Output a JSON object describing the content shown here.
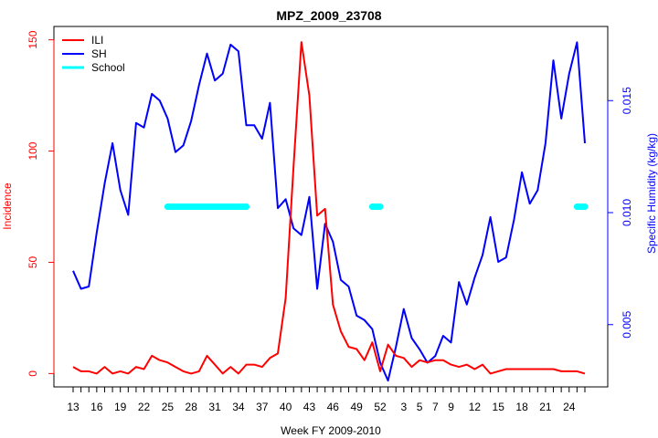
{
  "chart_data": {
    "type": "line",
    "title": "MPZ_2009_23708",
    "xlabel": "Week FY 2009-2010",
    "ylabel_left": "Incidence",
    "ylabel_right": "Specific Humidity (kg/kg)",
    "x_tick_labels": [
      "13",
      "16",
      "19",
      "22",
      "25",
      "28",
      "31",
      "34",
      "37",
      "40",
      "43",
      "46",
      "49",
      "52",
      "3",
      "5",
      "7",
      "9",
      "12",
      "15",
      "18",
      "21",
      "24"
    ],
    "y_left_ticks": [
      0,
      50,
      100,
      150
    ],
    "y_right_ticks": [
      0.005,
      0.01,
      0.015
    ],
    "y_left_lim": [
      -6,
      156
    ],
    "y_right_lim": [
      0.00222,
      0.01831
    ],
    "legend_position": "top-left",
    "colors": {
      "ILI": "#ff0000",
      "SH": "#0000ff",
      "School": "#00ffff",
      "left_axis": "#ff0000",
      "right_axis": "#0000ff"
    },
    "weeks": [
      13,
      14,
      15,
      16,
      17,
      18,
      19,
      20,
      21,
      22,
      23,
      24,
      25,
      26,
      27,
      28,
      29,
      30,
      31,
      32,
      33,
      34,
      35,
      36,
      37,
      38,
      39,
      40,
      41,
      42,
      43,
      44,
      45,
      46,
      47,
      48,
      49,
      50,
      51,
      52,
      1,
      2,
      3,
      4,
      5,
      6,
      7,
      8,
      9,
      10,
      11,
      12,
      13,
      14,
      15,
      16,
      17,
      18,
      19,
      20,
      21,
      22,
      23,
      24,
      25,
      26
    ],
    "series": [
      {
        "name": "ILI",
        "axis": "left",
        "values": [
          3,
          1,
          1,
          0,
          3,
          0,
          1,
          0,
          3,
          2,
          8,
          6,
          5,
          3,
          1,
          0,
          1,
          8,
          4,
          0,
          3,
          0,
          4,
          4,
          3,
          7,
          9,
          34,
          93,
          149,
          125,
          71,
          74,
          31,
          19,
          12,
          11,
          6,
          14,
          1,
          13,
          8,
          7,
          3,
          6,
          5,
          6,
          6,
          4,
          3,
          4,
          2,
          4,
          0,
          1,
          2,
          2,
          2,
          2,
          2,
          2,
          2,
          1,
          1,
          1,
          0
        ]
      },
      {
        "name": "SH",
        "axis": "right",
        "values": [
          0.0074,
          0.0066,
          0.0067,
          0.0091,
          0.0113,
          0.0131,
          0.011,
          0.0099,
          0.014,
          0.0138,
          0.0153,
          0.015,
          0.0142,
          0.0127,
          0.013,
          0.0141,
          0.0157,
          0.0171,
          0.0159,
          0.0162,
          0.0175,
          0.0172,
          0.0139,
          0.0139,
          0.0133,
          0.0149,
          0.0102,
          0.0106,
          0.0093,
          0.009,
          0.0107,
          0.0066,
          0.0095,
          0.0087,
          0.007,
          0.0067,
          0.0054,
          0.0052,
          0.0048,
          0.0033,
          0.0025,
          0.004,
          0.0057,
          0.0044,
          0.0039,
          0.0033,
          0.0036,
          0.0045,
          0.0042,
          0.0069,
          0.0059,
          0.0071,
          0.0081,
          0.0098,
          0.0078,
          0.008,
          0.0097,
          0.0118,
          0.0104,
          0.011,
          0.0131,
          0.0168,
          0.0142,
          0.0162,
          0.0176,
          0.0131
        ]
      }
    ],
    "school": {
      "name": "School",
      "level": 75,
      "segments": [
        [
          25,
          35
        ],
        [
          51,
          52
        ],
        [
          25,
          26
        ]
      ],
      "segment_indices": [
        [
          12,
          22
        ],
        [
          38,
          39
        ],
        [
          64,
          65
        ]
      ]
    }
  }
}
